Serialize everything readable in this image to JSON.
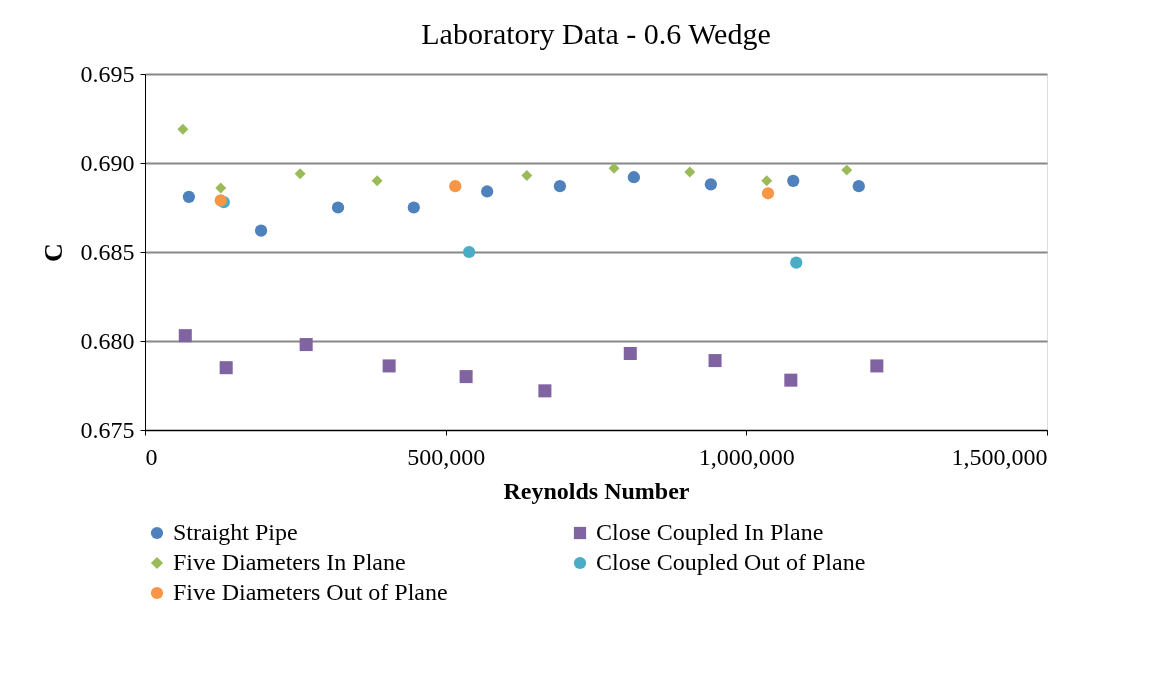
{
  "chart_data": {
    "type": "scatter",
    "title": "Laboratory Data - 0.6 Wedge",
    "xlabel": "Reynolds Number",
    "ylabel": "C",
    "xlim": [
      0,
      1500000
    ],
    "xticks": [
      {
        "value": 0,
        "label": "0"
      },
      {
        "value": 500000,
        "label": "500,000"
      },
      {
        "value": 1000000,
        "label": "1,000,000"
      },
      {
        "value": 1500000,
        "label": "1,500,000"
      }
    ],
    "ylim": [
      0.675,
      0.695
    ],
    "yticks": [
      {
        "value": 0.675,
        "label": "0.675"
      },
      {
        "value": 0.68,
        "label": "0.680"
      },
      {
        "value": 0.685,
        "label": "0.685"
      },
      {
        "value": 0.69,
        "label": "0.690"
      },
      {
        "value": 0.695,
        "label": "0.695"
      }
    ],
    "grid": "y",
    "legend": "bottom",
    "series": [
      {
        "name": "Straight Pipe",
        "color": "#4f81bd",
        "marker": "circle",
        "x": [
          73000,
          193000,
          321000,
          447000,
          569000,
          690000,
          813000,
          941000,
          1078000,
          1187000
        ],
        "values": [
          0.6881,
          0.6862,
          0.6875,
          0.6875,
          0.6884,
          0.6887,
          0.6892,
          0.6888,
          0.689,
          0.6887
        ]
      },
      {
        "name": "Close Coupled In Plane",
        "color": "#8064a2",
        "marker": "square",
        "x": [
          67000,
          135000,
          268000,
          406000,
          534000,
          665000,
          807000,
          948000,
          1074000,
          1217000
        ],
        "values": [
          0.6803,
          0.6785,
          0.6798,
          0.6786,
          0.678,
          0.6772,
          0.6793,
          0.6789,
          0.6778,
          0.6786
        ]
      },
      {
        "name": "Five Diameters In Plane",
        "color": "#9bbb59",
        "marker": "diamond",
        "x": [
          63000,
          126000,
          258000,
          386000,
          635000,
          780000,
          906000,
          1034000,
          1167000
        ],
        "values": [
          0.6919,
          0.6886,
          0.6894,
          0.689,
          0.6893,
          0.6897,
          0.6895,
          0.689,
          0.6896
        ]
      },
      {
        "name": "Close Coupled Out of Plane",
        "color": "#4bacc6",
        "marker": "circle",
        "x": [
          131000,
          539000,
          1083000
        ],
        "values": [
          0.6878,
          0.685,
          0.6844
        ]
      },
      {
        "name": "Five Diameters Out of Plane",
        "color": "#f79646",
        "marker": "circle",
        "x": [
          126000,
          516000,
          1036000
        ],
        "values": [
          0.6879,
          0.6887,
          0.6883
        ]
      }
    ]
  }
}
